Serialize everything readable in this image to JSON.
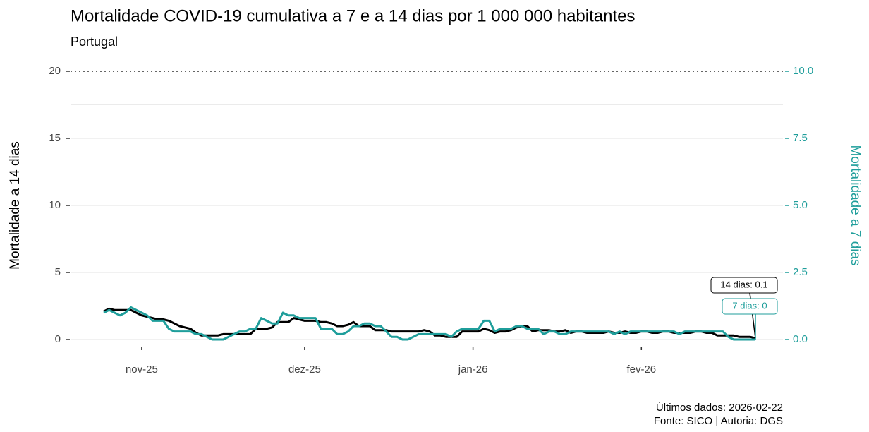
{
  "chart_data": {
    "type": "line",
    "title": "Mortalidade COVID-19 cumulativa a 7 e a 14 dias por 1 000 000 habitantes",
    "subtitle": "Portugal",
    "y_label": "Mortalidade a 14 dias",
    "y2_label": "Mortalidade a 7 dias",
    "caption": [
      "Últimos dados: 2026-02-22",
      "Fonte: SICO | Autoria: DGS"
    ],
    "annotations": [
      "14 dias: 0.1",
      "7 dias: 0"
    ],
    "categories": [
      null,
      null,
      null,
      null,
      null,
      null,
      null,
      "nov-25",
      null,
      null,
      null,
      null,
      null,
      null,
      null,
      null,
      null,
      null,
      null,
      null,
      null,
      null,
      null,
      null,
      null,
      null,
      null,
      null,
      null,
      null,
      null,
      null,
      null,
      null,
      null,
      null,
      null,
      "dez-25",
      null,
      null,
      null,
      null,
      null,
      null,
      null,
      null,
      null,
      null,
      null,
      null,
      null,
      null,
      null,
      null,
      null,
      null,
      null,
      null,
      null,
      null,
      null,
      null,
      null,
      null,
      null,
      null,
      null,
      null,
      "jan-26",
      null,
      null,
      null,
      null,
      null,
      null,
      null,
      null,
      null,
      null,
      null,
      null,
      null,
      null,
      null,
      null,
      null,
      null,
      null,
      null,
      null,
      null,
      null,
      null,
      null,
      null,
      null,
      null,
      null,
      null,
      "fev-26",
      null,
      null,
      null,
      null,
      null,
      null,
      null,
      null,
      null,
      null,
      null,
      null,
      null,
      null,
      null,
      null,
      null,
      null,
      null,
      null,
      null
    ],
    "ylim": [
      0,
      20
    ],
    "yticks": [
      0,
      5,
      10,
      15,
      20
    ],
    "y2lim": [
      0,
      10
    ],
    "y2ticks": [
      {
        "value": 0,
        "label": "0.0"
      },
      2.5,
      {
        "value": 5,
        "label": "5.0"
      },
      7.5,
      {
        "value": 10,
        "label": "10.0"
      }
    ],
    "grid": true,
    "series": [
      {
        "name": "14 dias",
        "color": "#000000",
        "values": [
          2.1,
          2.3,
          2.2,
          2.2,
          2.2,
          2.2,
          2.0,
          1.8,
          1.7,
          1.6,
          1.5,
          1.5,
          1.4,
          1.2,
          1.0,
          0.9,
          0.8,
          0.5,
          0.3,
          0.3,
          0.3,
          0.3,
          0.4,
          0.4,
          0.4,
          0.4,
          0.4,
          0.4,
          0.8,
          0.8,
          0.8,
          0.9,
          1.3,
          1.3,
          1.3,
          1.6,
          1.5,
          1.4,
          1.4,
          1.4,
          1.3,
          1.3,
          1.2,
          1.0,
          1.0,
          1.1,
          1.3,
          1.0,
          1.0,
          1.0,
          0.7,
          0.7,
          0.7,
          0.6,
          0.6,
          0.6,
          0.6,
          0.6,
          0.6,
          0.7,
          0.6,
          0.3,
          0.3,
          0.2,
          0.2,
          0.2,
          0.6,
          0.6,
          0.6,
          0.6,
          0.8,
          0.7,
          0.5,
          0.6,
          0.6,
          0.7,
          0.9,
          1.0,
          1.0,
          0.6,
          0.7,
          0.7,
          0.7,
          0.6,
          0.6,
          0.7,
          0.5,
          0.6,
          0.6,
          0.5,
          0.5,
          0.5,
          0.5,
          0.6,
          0.5,
          0.5,
          0.6,
          0.5,
          0.5,
          0.6,
          0.6,
          0.5,
          0.5,
          0.6,
          0.6,
          0.5,
          0.5,
          0.5,
          0.5,
          0.6,
          0.6,
          0.5,
          0.5,
          0.3,
          0.3,
          0.3,
          0.3,
          0.2,
          0.2,
          0.2,
          0.1
        ]
      },
      {
        "name": "7 dias",
        "color": "#1f9e9b",
        "axis": "y2",
        "values": [
          1.0,
          1.1,
          1.0,
          0.9,
          1.0,
          1.2,
          1.1,
          1.0,
          0.9,
          0.7,
          0.7,
          0.7,
          0.4,
          0.3,
          0.3,
          0.3,
          0.3,
          0.2,
          0.2,
          0.1,
          0.0,
          0.0,
          0.0,
          0.1,
          0.2,
          0.3,
          0.3,
          0.4,
          0.4,
          0.8,
          0.7,
          0.6,
          0.6,
          1.0,
          0.9,
          0.9,
          0.8,
          0.8,
          0.8,
          0.8,
          0.4,
          0.4,
          0.4,
          0.2,
          0.2,
          0.3,
          0.5,
          0.5,
          0.6,
          0.6,
          0.5,
          0.5,
          0.3,
          0.1,
          0.1,
          0.0,
          0.0,
          0.1,
          0.2,
          0.2,
          0.2,
          0.2,
          0.2,
          0.2,
          0.1,
          0.3,
          0.4,
          0.4,
          0.4,
          0.4,
          0.7,
          0.7,
          0.3,
          0.4,
          0.4,
          0.4,
          0.5,
          0.5,
          0.4,
          0.4,
          0.4,
          0.2,
          0.3,
          0.3,
          0.2,
          0.2,
          0.3,
          0.3,
          0.3,
          0.3,
          0.3,
          0.3,
          0.3,
          0.3,
          0.2,
          0.3,
          0.2,
          0.3,
          0.3,
          0.3,
          0.3,
          0.3,
          0.3,
          0.3,
          0.3,
          0.3,
          0.2,
          0.3,
          0.3,
          0.3,
          0.3,
          0.3,
          0.3,
          0.3,
          0.3,
          0.1,
          0.0,
          0.0,
          0.0,
          0.0,
          0.0
        ]
      }
    ]
  }
}
